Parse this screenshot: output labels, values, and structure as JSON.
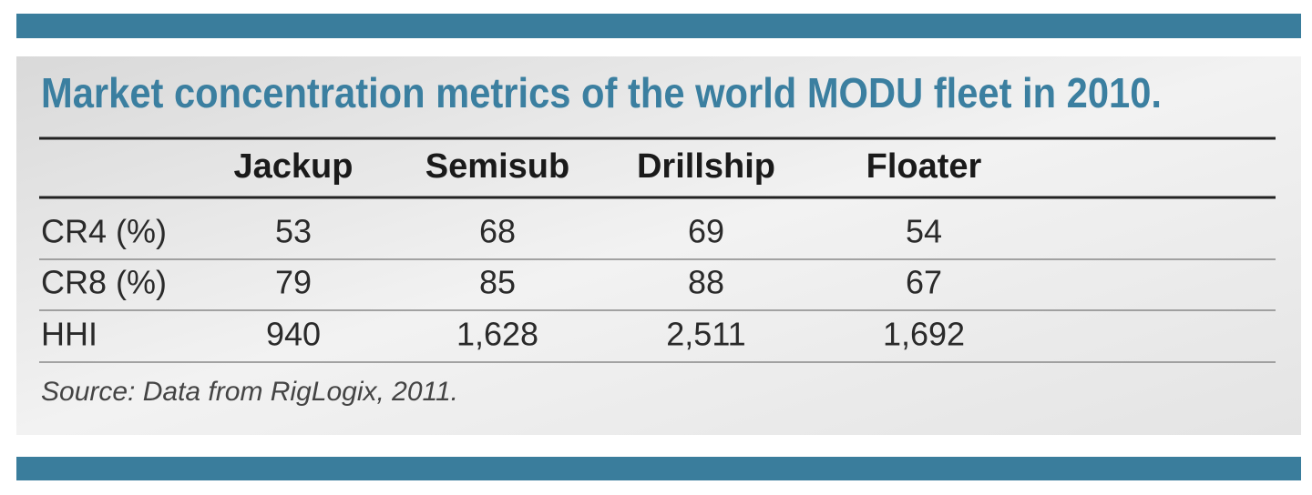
{
  "table": {
    "title": "Market concentration metrics of the world MODU fleet in 2010.",
    "columns": [
      "Jackup",
      "Semisub",
      "Drillship",
      "Floater"
    ],
    "rows": [
      {
        "label": "CR4 (%)",
        "values": [
          "53",
          "68",
          "69",
          "54"
        ]
      },
      {
        "label": "CR8 (%)",
        "values": [
          "79",
          "85",
          "88",
          "67"
        ]
      },
      {
        "label": "HHI",
        "values": [
          "940",
          "1,628",
          "2,511",
          "1,692"
        ]
      }
    ],
    "source": "Source: Data from RigLogix, 2011."
  }
}
